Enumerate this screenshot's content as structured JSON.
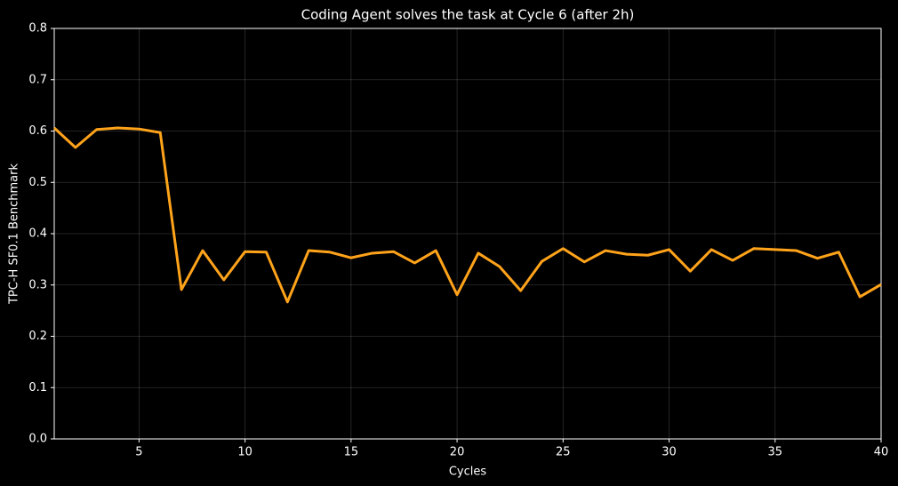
{
  "chart_data": {
    "type": "line",
    "title": "Coding Agent solves the task at Cycle 6 (after 2h)",
    "x_label": "Cycles",
    "y_label": "TPC-H SF0.1 Benchmark",
    "x": [
      1,
      2,
      3,
      4,
      5,
      6,
      7,
      8,
      9,
      10,
      11,
      12,
      13,
      14,
      15,
      16,
      17,
      18,
      19,
      20,
      21,
      22,
      23,
      24,
      25,
      26,
      27,
      28,
      29,
      30,
      31,
      32,
      33,
      34,
      35,
      36,
      37,
      38,
      39,
      40
    ],
    "series": [
      {
        "name": "TPC-H SF0.1 Benchmark",
        "color": "#ffa31a",
        "values": [
          0.606,
          0.568,
          0.603,
          0.606,
          0.604,
          0.597,
          0.291,
          0.367,
          0.31,
          0.365,
          0.364,
          0.267,
          0.367,
          0.364,
          0.353,
          0.362,
          0.365,
          0.343,
          0.367,
          0.281,
          0.362,
          0.336,
          0.289,
          0.346,
          0.371,
          0.345,
          0.367,
          0.36,
          0.358,
          0.369,
          0.327,
          0.369,
          0.348,
          0.371,
          0.369,
          0.367,
          0.352,
          0.364,
          0.277,
          0.301
        ]
      }
    ],
    "xlim": [
      1,
      40
    ],
    "xticks": [
      5,
      10,
      15,
      20,
      25,
      30,
      35,
      40
    ],
    "ylim": [
      0,
      0.8
    ],
    "yticks": [
      {
        "value": 0,
        "label": "0.0"
      },
      0.1,
      0.2,
      0.3,
      0.4,
      0.5,
      0.6,
      0.7,
      0.8
    ],
    "grid": true
  }
}
